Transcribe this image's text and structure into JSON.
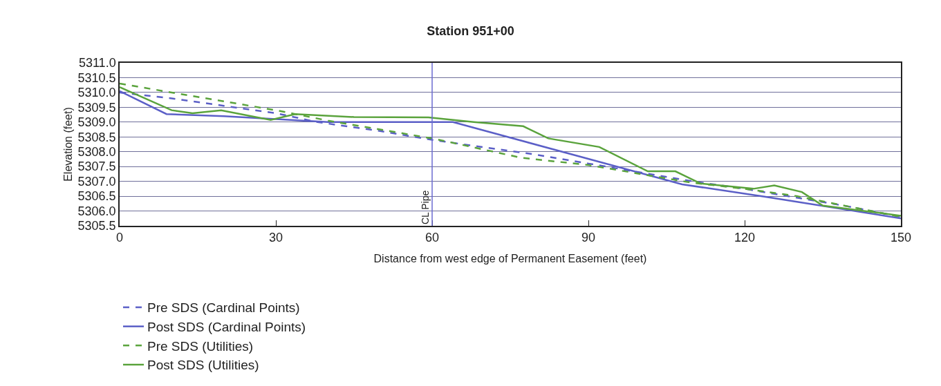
{
  "chart_data": {
    "type": "line",
    "title": "Station 951+00",
    "xlabel": "Distance from west edge of Permanent Easement (feet)",
    "ylabel": "Elevation (feet)",
    "xlim": [
      0,
      150
    ],
    "xticks": [
      0,
      30,
      60,
      90,
      120,
      150
    ],
    "ylim": [
      5305.5,
      5311.0
    ],
    "yticks": [
      {
        "value": 5305.5,
        "label": "5305.5"
      },
      {
        "value": 5306,
        "label": "5306.0"
      },
      {
        "value": 5306.5,
        "label": "5306.5"
      },
      {
        "value": 5307,
        "label": "5307.0"
      },
      {
        "value": 5307.5,
        "label": "5307.5"
      },
      {
        "value": 5308,
        "label": "5308.0"
      },
      {
        "value": 5308.5,
        "label": "5308.5"
      },
      {
        "value": 5309,
        "label": "5309.0"
      },
      {
        "value": 5309.5,
        "label": "5309.5"
      },
      {
        "value": 5310,
        "label": "5310.0"
      },
      {
        "value": 5310.5,
        "label": "5310.5"
      },
      {
        "value": 5311,
        "label": "5311.0"
      }
    ],
    "grid": "y",
    "legend": "bottom",
    "marker": "none",
    "ref_lines": [
      {
        "axis": "x",
        "value": 60,
        "label": "CL Pipe",
        "color": "#6a6ad0"
      }
    ],
    "series": [
      {
        "name": "Pre SDS (Cardinal Points)",
        "color": "#5b5fc7",
        "line_style": "dashed",
        "x": [
          0,
          10,
          20,
          30,
          38,
          50,
          60,
          70,
          80,
          90,
          100,
          110,
          120,
          130,
          140,
          150
        ],
        "values": [
          5310.0,
          5309.8,
          5309.55,
          5309.3,
          5309.0,
          5308.7,
          5308.4,
          5308.15,
          5307.9,
          5307.6,
          5307.3,
          5307.0,
          5306.75,
          5306.45,
          5306.15,
          5305.8
        ]
      },
      {
        "name": "Post SDS (Cardinal Points)",
        "color": "#5b5fc7",
        "line_style": "solid",
        "x": [
          0,
          9,
          20,
          40,
          64,
          108,
          124,
          150
        ],
        "values": [
          5310.05,
          5309.27,
          5309.2,
          5309.0,
          5309.0,
          5306.9,
          5306.48,
          5305.75
        ]
      },
      {
        "name": "Pre SDS (Utilities)",
        "color": "#5aa33c",
        "line_style": "dashed",
        "x": [
          0,
          10,
          20,
          30,
          40,
          50,
          60,
          64,
          77,
          90,
          100,
          110,
          120,
          130,
          140,
          150
        ],
        "values": [
          5310.3,
          5310.0,
          5309.7,
          5309.4,
          5309.05,
          5308.75,
          5308.45,
          5308.3,
          5307.8,
          5307.55,
          5307.25,
          5306.95,
          5306.75,
          5306.5,
          5306.15,
          5305.8
        ]
      },
      {
        "name": "Post SDS (Utilities)",
        "color": "#5aa33c",
        "line_style": "solid",
        "x": [
          0,
          10,
          14,
          19.5,
          29,
          33.7,
          45,
          59.3,
          68,
          77.5,
          82.3,
          92.1,
          101.4,
          106.7,
          111.5,
          121.7,
          125.7,
          131,
          135,
          145.2,
          150
        ],
        "values": [
          5310.18,
          5309.4,
          5309.3,
          5309.4,
          5309.07,
          5309.27,
          5309.17,
          5309.16,
          5309.0,
          5308.86,
          5308.45,
          5308.16,
          5307.34,
          5307.34,
          5306.93,
          5306.75,
          5306.86,
          5306.64,
          5306.18,
          5305.95,
          5305.84
        ]
      }
    ]
  }
}
